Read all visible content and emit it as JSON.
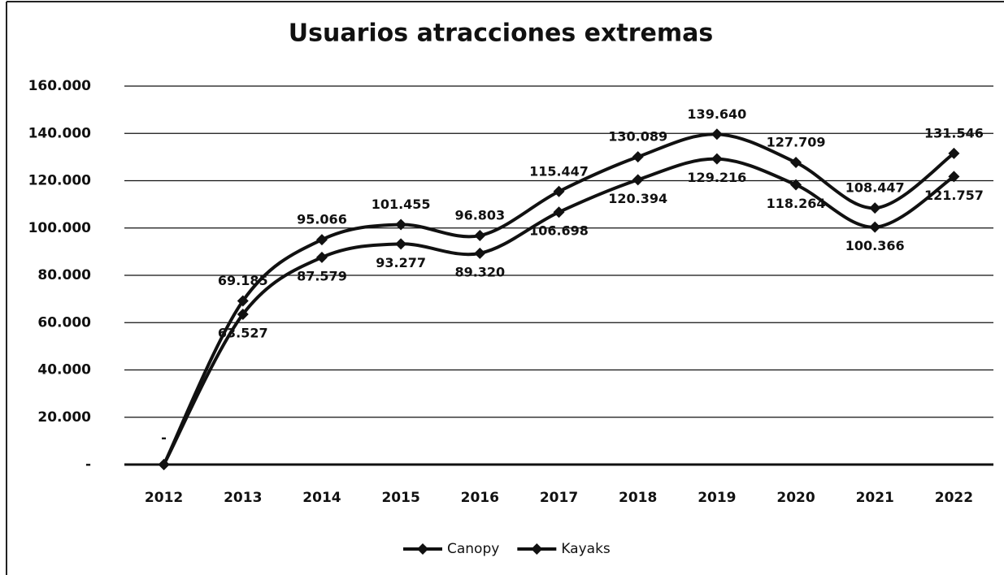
{
  "chart_data": {
    "type": "line",
    "title": "Usuarios atracciones extremas",
    "categories": [
      "2012",
      "2013",
      "2014",
      "2015",
      "2016",
      "2017",
      "2018",
      "2019",
      "2020",
      "2021",
      "2022"
    ],
    "series": [
      {
        "name": "Canopy",
        "color": "#111111",
        "values": [
          0,
          69185,
          95066,
          101455,
          96803,
          115447,
          130089,
          139640,
          127709,
          108447,
          131546
        ],
        "value_labels": [
          "-",
          "69.185",
          "95.066",
          "101.455",
          "96.803",
          "115.447",
          "130.089",
          "139.640",
          "127.709",
          "108.447",
          "131.546"
        ]
      },
      {
        "name": "Kayaks",
        "color": "#111111",
        "values": [
          0,
          63527,
          87579,
          93277,
          89320,
          106698,
          120394,
          129216,
          118264,
          100366,
          121757
        ],
        "value_labels": [
          "-",
          "63.527",
          "87.579",
          "93.277",
          "89.320",
          "106.698",
          "120.394",
          "129.216",
          "118.264",
          "100.366",
          "121.757"
        ]
      }
    ],
    "ylim": [
      0,
      160000
    ],
    "yticks": [
      {
        "value": 0,
        "label": "-"
      },
      {
        "value": 20000,
        "label": "20.000"
      },
      {
        "value": 40000,
        "label": "40.000"
      },
      {
        "value": 60000,
        "label": "60.000"
      },
      {
        "value": 80000,
        "label": "80.000"
      },
      {
        "value": 100000,
        "label": "100.000"
      },
      {
        "value": 120000,
        "label": "120.000"
      },
      {
        "value": 140000,
        "label": "140.000"
      },
      {
        "value": 160000,
        "label": "160.000"
      }
    ],
    "grid": true,
    "legend": "bottom"
  }
}
